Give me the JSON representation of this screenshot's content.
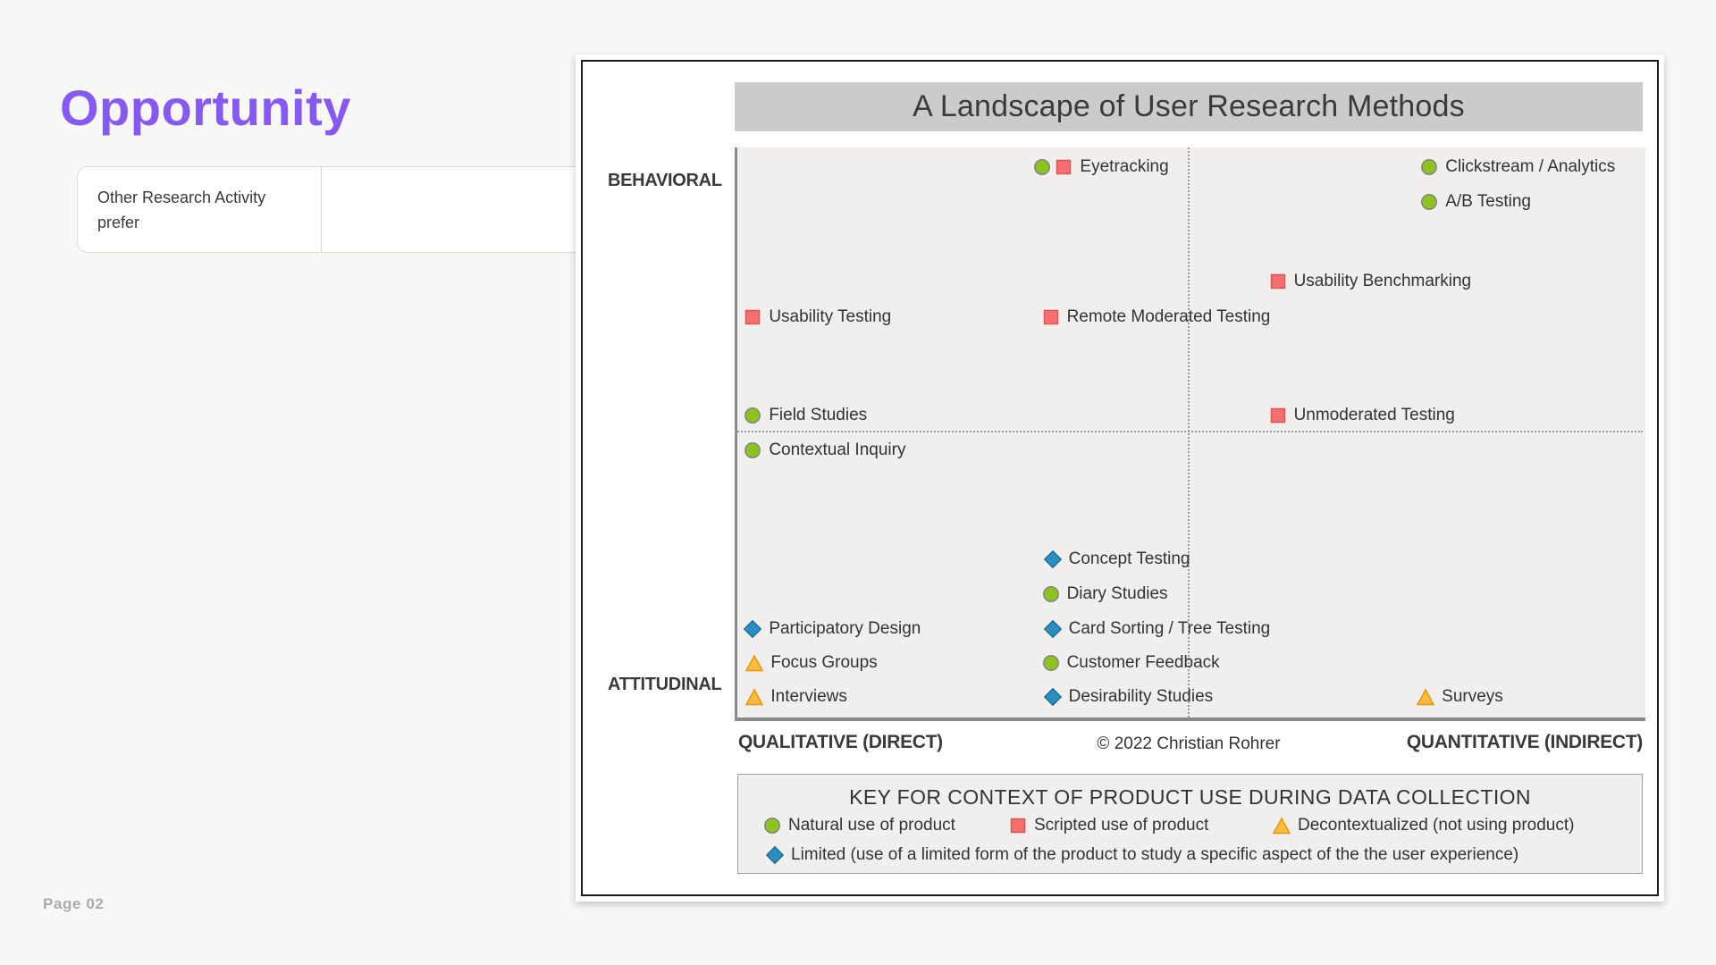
{
  "slide": {
    "title": "Opportunity",
    "page_label": "Page 02",
    "accent_color": "#8659f2",
    "table": {
      "cell_text": "Other Research Activity prefer"
    }
  },
  "chart": {
    "title": "A Landscape of User Research Methods",
    "y_axis_top": "BEHAVIORAL",
    "y_axis_bottom": "ATTITUDINAL",
    "x_axis_left": "QUALITATIVE (DIRECT)",
    "x_axis_right": "QUANTITATIVE (INDIRECT)",
    "copyright": "© 2022 Christian Rohrer",
    "key": {
      "title": "KEY FOR CONTEXT OF PRODUCT USE DURING DATA COLLECTION",
      "items": [
        {
          "context": "natural",
          "label": "Natural use of product"
        },
        {
          "context": "scripted",
          "label": "Scripted use of product"
        },
        {
          "context": "decontextualized",
          "label": "Decontextualized (not using product)"
        },
        {
          "context": "limited",
          "label": "Limited (use of a limited form of the product to study a specific aspect of the the user experience)"
        }
      ]
    }
  },
  "markers": {
    "natural": {
      "shape": "circle",
      "fill": "#8cc31f",
      "stroke": "#848484"
    },
    "scripted": {
      "shape": "square",
      "fill": "#f76e6e",
      "stroke": "#d95757"
    },
    "decontextualized": {
      "shape": "triangle",
      "fill": "#fbbb40",
      "stroke": "#e8960c"
    },
    "limited": {
      "shape": "diamond",
      "fill": "#2b8dc0",
      "stroke": "#1f6f9b"
    }
  },
  "chart_data": {
    "type": "scatter",
    "title": "A Landscape of User Research Methods",
    "x_axis": {
      "left_label": "QUALITATIVE (DIRECT)",
      "right_label": "QUANTITATIVE (INDIRECT)",
      "range": [
        0,
        100
      ]
    },
    "y_axis": {
      "top_label": "BEHAVIORAL",
      "bottom_label": "ATTITUDINAL",
      "range": [
        0,
        100
      ]
    },
    "grid": "quadrant dotted dividers at x=50, y=50",
    "legend_position": "bottom key box",
    "items": [
      {
        "label": "Eyetracking",
        "contexts": [
          "natural",
          "scripted"
        ],
        "x": 33.9,
        "y": 96.6
      },
      {
        "label": "Clickstream / Analytics",
        "contexts": [
          "natural"
        ],
        "x": 76.5,
        "y": 96.6
      },
      {
        "label": "A/B Testing",
        "contexts": [
          "natural"
        ],
        "x": 76.5,
        "y": 90.4
      },
      {
        "label": "Usability Benchmarking",
        "contexts": [
          "scripted"
        ],
        "x": 59.8,
        "y": 76.5
      },
      {
        "label": "Usability Testing",
        "contexts": [
          "scripted"
        ],
        "x": 2.0,
        "y": 70.2
      },
      {
        "label": "Remote Moderated Testing",
        "contexts": [
          "scripted"
        ],
        "x": 34.8,
        "y": 70.2
      },
      {
        "label": "Field Studies",
        "contexts": [
          "natural"
        ],
        "x": 2.0,
        "y": 53.0
      },
      {
        "label": "Unmoderated Testing",
        "contexts": [
          "scripted"
        ],
        "x": 59.8,
        "y": 53.0
      },
      {
        "label": "Contextual Inquiry",
        "contexts": [
          "natural"
        ],
        "x": 2.0,
        "y": 46.9
      },
      {
        "label": "Concept Testing",
        "contexts": [
          "limited"
        ],
        "x": 35.0,
        "y": 27.7
      },
      {
        "label": "Diary Studies",
        "contexts": [
          "natural"
        ],
        "x": 34.8,
        "y": 21.6
      },
      {
        "label": "Participatory Design",
        "contexts": [
          "limited"
        ],
        "x": 2.0,
        "y": 15.5
      },
      {
        "label": "Card Sorting / Tree Testing",
        "contexts": [
          "limited"
        ],
        "x": 35.0,
        "y": 15.5
      },
      {
        "label": "Focus Groups",
        "contexts": [
          "decontextualized"
        ],
        "x": 2.2,
        "y": 9.6
      },
      {
        "label": "Customer Feedback",
        "contexts": [
          "natural"
        ],
        "x": 34.8,
        "y": 9.6
      },
      {
        "label": "Interviews",
        "contexts": [
          "decontextualized"
        ],
        "x": 2.2,
        "y": 3.6
      },
      {
        "label": "Desirability Studies",
        "contexts": [
          "limited"
        ],
        "x": 35.0,
        "y": 3.6
      },
      {
        "label": "Surveys",
        "contexts": [
          "decontextualized"
        ],
        "x": 76.1,
        "y": 3.6
      }
    ]
  }
}
